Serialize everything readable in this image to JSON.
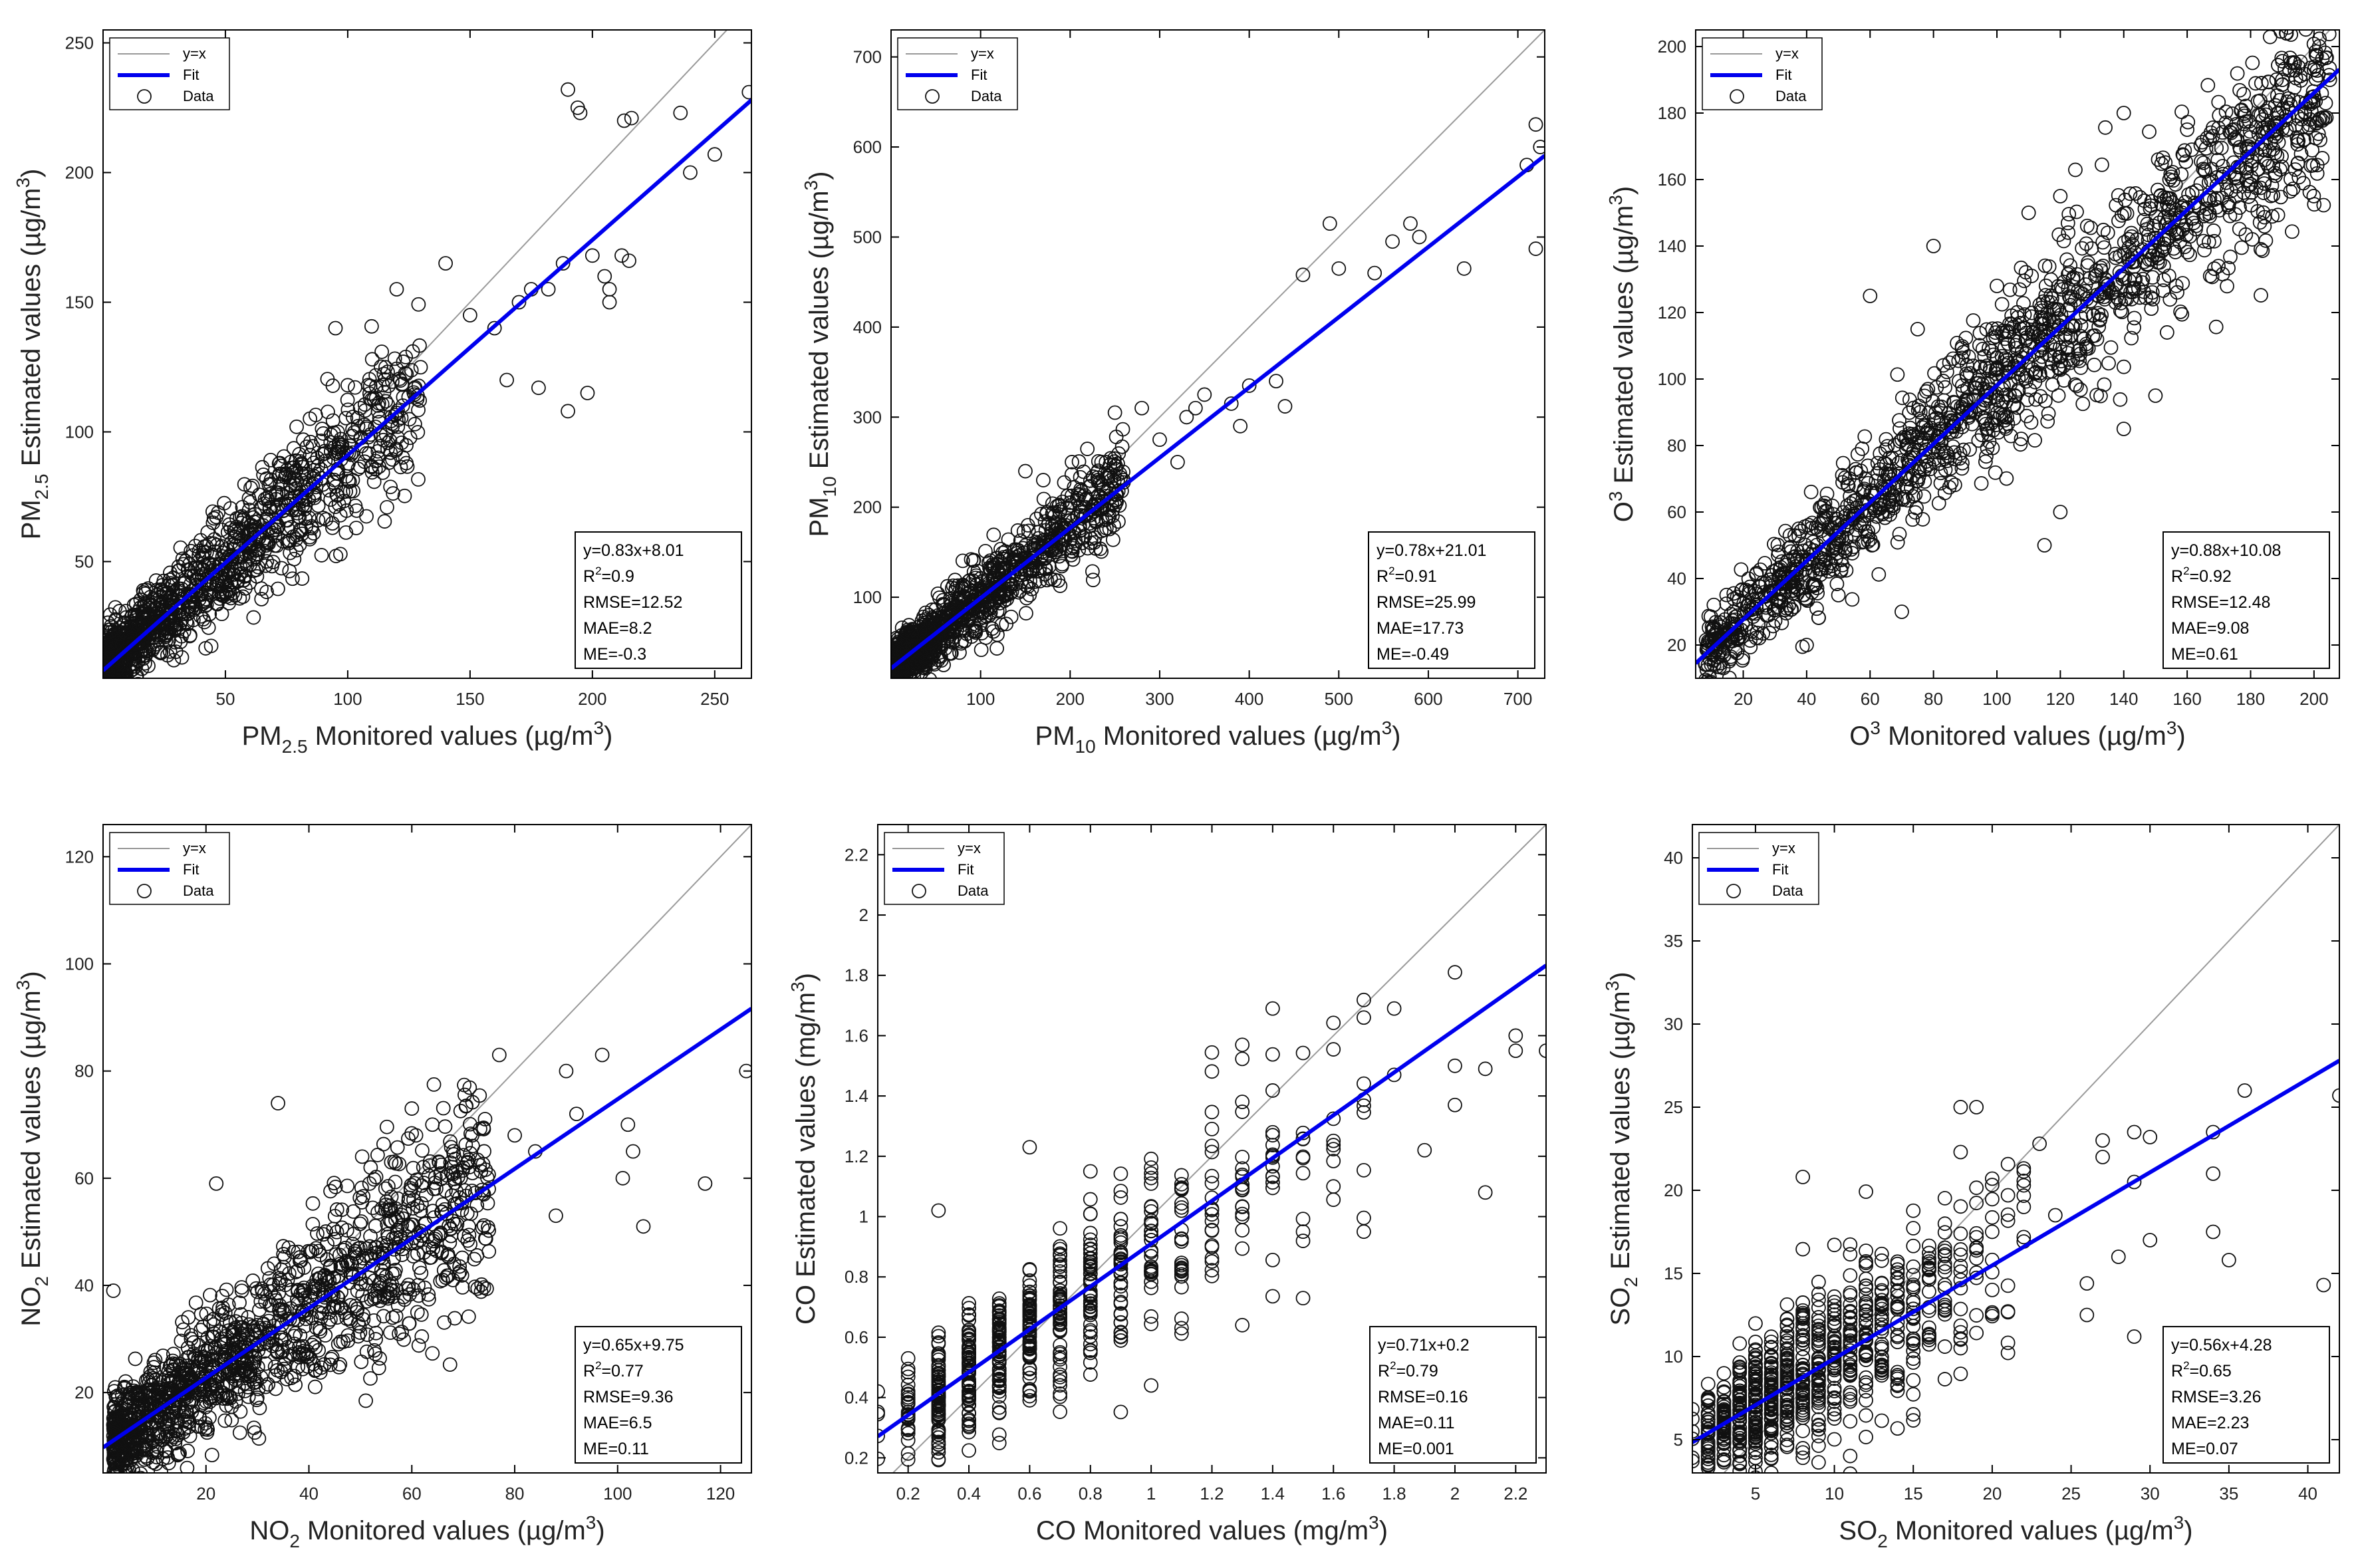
{
  "figure": {
    "layout": "2x3 grid of scatter plots",
    "colors": {
      "fit": "#0000ee",
      "identity": "#9a9a9a",
      "marker": "#111111",
      "axes": "#000000"
    }
  },
  "legend": {
    "identity": "y=x",
    "fit": "Fit",
    "data": "Data"
  },
  "chart_data": [
    {
      "id": "pm25",
      "type": "scatter",
      "unit": "(µg/m3)",
      "x_label_parts": [
        "PM",
        "2.5",
        " Monitored values (µg/m",
        "3",
        ")"
      ],
      "y_label_parts": [
        "PM",
        "2.5",
        " Estimated values (µg/m",
        "3",
        ")"
      ],
      "xlim": [
        0,
        265
      ],
      "ylim": [
        5,
        255
      ],
      "xticks": [
        50,
        100,
        150,
        200,
        250
      ],
      "yticks": [
        50,
        100,
        150,
        200,
        250
      ],
      "fit": {
        "slope": 0.83,
        "intercept": 8.01
      },
      "stats": {
        "equation": "y=0.83x+8.01",
        "r2": "R2=0.9",
        "rmse": "RMSE=12.52",
        "mae": "MAE=8.2",
        "me": "ME=-0.3"
      },
      "cloud": {
        "n": 1300,
        "xmin": 2,
        "xmax": 130,
        "skew": 2.2,
        "noise": 10
      },
      "points": [
        [
          190,
          232
        ],
        [
          194,
          225
        ],
        [
          195,
          223
        ],
        [
          213,
          220
        ],
        [
          216,
          221
        ],
        [
          236,
          223
        ],
        [
          240,
          200
        ],
        [
          250,
          207
        ],
        [
          264,
          231
        ],
        [
          188,
          165
        ],
        [
          200,
          168
        ],
        [
          205,
          160
        ],
        [
          207,
          155
        ],
        [
          207,
          150
        ],
        [
          212,
          168
        ],
        [
          215,
          166
        ],
        [
          190,
          108
        ],
        [
          198,
          115
        ],
        [
          178,
          117
        ],
        [
          182,
          155
        ],
        [
          160,
          140
        ],
        [
          150,
          145
        ],
        [
          170,
          150
        ],
        [
          175,
          155
        ],
        [
          165,
          120
        ],
        [
          140,
          165
        ],
        [
          120,
          155
        ],
        [
          110,
          128
        ],
        [
          100,
          118
        ],
        [
          95,
          140
        ]
      ]
    },
    {
      "id": "pm10",
      "type": "scatter",
      "unit": "(µg/m3)",
      "x_label_parts": [
        "PM",
        "10",
        " Monitored values (µg/m",
        "3",
        ")"
      ],
      "y_label_parts": [
        "PM",
        "10",
        " Estimated values (µg/m",
        "3",
        ")"
      ],
      "xlim": [
        0,
        730
      ],
      "ylim": [
        10,
        730
      ],
      "xticks": [
        100,
        200,
        300,
        400,
        500,
        600,
        700
      ],
      "yticks": [
        100,
        200,
        300,
        400,
        500,
        600,
        700
      ],
      "fit": {
        "slope": 0.78,
        "intercept": 21.01
      },
      "stats": {
        "equation": "y=0.78x+21.01",
        "r2": "R2=0.91",
        "rmse": "RMSE=25.99",
        "mae": "MAE=17.73",
        "me": "ME=-0.49"
      },
      "cloud": {
        "n": 1300,
        "xmin": 5,
        "xmax": 260,
        "skew": 2.2,
        "noise": 20
      },
      "points": [
        [
          720,
          625
        ],
        [
          710,
          580
        ],
        [
          725,
          600
        ],
        [
          720,
          487
        ],
        [
          640,
          465
        ],
        [
          580,
          515
        ],
        [
          590,
          500
        ],
        [
          560,
          495
        ],
        [
          540,
          460
        ],
        [
          490,
          515
        ],
        [
          500,
          465
        ],
        [
          460,
          458
        ],
        [
          430,
          340
        ],
        [
          440,
          312
        ],
        [
          380,
          315
        ],
        [
          390,
          290
        ],
        [
          400,
          335
        ],
        [
          350,
          325
        ],
        [
          340,
          310
        ],
        [
          300,
          275
        ],
        [
          280,
          310
        ],
        [
          250,
          305
        ],
        [
          240,
          250
        ],
        [
          330,
          300
        ],
        [
          320,
          250
        ],
        [
          170,
          230
        ],
        [
          150,
          240
        ],
        [
          200,
          205
        ]
      ]
    },
    {
      "id": "o3",
      "type": "scatter",
      "unit": "(µg/m3)",
      "x_label_parts": [
        "O",
        "3",
        " Monitored values (µg/m",
        "3",
        ")"
      ],
      "y_label_parts": [
        "O",
        "3",
        " Estimated values (µg/m",
        "3",
        ")"
      ],
      "xlim": [
        5,
        208
      ],
      "ylim": [
        10,
        205
      ],
      "xticks": [
        20,
        40,
        60,
        80,
        100,
        120,
        140,
        160,
        180,
        200
      ],
      "yticks": [
        20,
        40,
        60,
        80,
        100,
        120,
        140,
        160,
        180,
        200
      ],
      "fit": {
        "slope": 0.88,
        "intercept": 10.08
      },
      "stats": {
        "equation": "y=0.88x+10.08",
        "r2": "R2=0.92",
        "rmse": "RMSE=12.48",
        "mae": "MAE=9.08",
        "me": "ME=0.61"
      },
      "cloud": {
        "n": 1600,
        "xmin": 8,
        "xmax": 205,
        "skew": 1.0,
        "noise": 10
      },
      "points": [
        [
          205,
          190
        ],
        [
          200,
          185
        ],
        [
          190,
          190
        ],
        [
          185,
          175
        ],
        [
          195,
          165
        ],
        [
          160,
          175
        ],
        [
          140,
          180
        ],
        [
          120,
          155
        ],
        [
          110,
          150
        ],
        [
          100,
          128
        ],
        [
          80,
          140
        ],
        [
          60,
          125
        ],
        [
          75,
          115
        ],
        [
          150,
          95
        ],
        [
          140,
          85
        ],
        [
          120,
          60
        ],
        [
          115,
          50
        ],
        [
          70,
          30
        ],
        [
          50,
          35
        ],
        [
          40,
          20
        ]
      ]
    },
    {
      "id": "no2",
      "type": "scatter",
      "unit": "(µg/m3)",
      "x_label_parts": [
        "NO",
        "2",
        " Monitored values (µg/m",
        "3",
        ")"
      ],
      "y_label_parts": [
        "NO",
        "2",
        " Estimated values (µg/m",
        "3",
        ")"
      ],
      "xlim": [
        0,
        126
      ],
      "ylim": [
        5,
        126
      ],
      "xticks": [
        20,
        40,
        60,
        80,
        100,
        120
      ],
      "yticks": [
        20,
        40,
        60,
        80,
        100,
        120
      ],
      "fit": {
        "slope": 0.65,
        "intercept": 9.75
      },
      "stats": {
        "equation": "y=0.65x+9.75",
        "r2": "R2=0.77",
        "rmse": "RMSE=9.36",
        "mae": "MAE=6.5",
        "me": "ME=0.11"
      },
      "cloud": {
        "n": 1400,
        "xmin": 2,
        "xmax": 75,
        "skew": 1.5,
        "noise": 6.5
      },
      "points": [
        [
          125,
          80
        ],
        [
          117,
          59
        ],
        [
          105,
          51
        ],
        [
          103,
          65
        ],
        [
          101,
          60
        ],
        [
          97,
          83
        ],
        [
          102,
          70
        ],
        [
          92,
          72
        ],
        [
          90,
          80
        ],
        [
          88,
          53
        ],
        [
          84,
          65
        ],
        [
          80,
          68
        ],
        [
          77,
          83
        ],
        [
          74,
          57
        ],
        [
          70,
          62
        ],
        [
          68,
          41
        ],
        [
          66,
          41
        ],
        [
          64,
          70
        ],
        [
          60,
          73
        ],
        [
          56,
          63
        ],
        [
          52,
          62
        ],
        [
          50,
          47
        ],
        [
          34,
          74
        ],
        [
          22,
          59
        ],
        [
          2,
          39
        ]
      ]
    },
    {
      "id": "co",
      "type": "scatter",
      "unit": "(mg/m3)",
      "x_label_parts": [
        "CO Monitored values (mg/m",
        "3",
        ")"
      ],
      "y_label_parts": [
        "CO Estimated values (mg/m",
        "3",
        ")"
      ],
      "xlim": [
        0.1,
        2.3
      ],
      "ylim": [
        0.15,
        2.3
      ],
      "xticks": [
        0.2,
        0.4,
        0.6,
        0.8,
        1,
        1.2,
        1.4,
        1.6,
        1.8,
        2,
        2.2
      ],
      "yticks": [
        0.2,
        0.4,
        0.6,
        0.8,
        1,
        1.2,
        1.4,
        1.6,
        1.8,
        2,
        2.2
      ],
      "fit": {
        "slope": 0.71,
        "intercept": 0.2
      },
      "stats": {
        "equation": "y=0.71x+0.2",
        "r2": "R2=0.79",
        "rmse": "RMSE=0.16",
        "mae": "MAE=0.11",
        "me": "ME=0.001"
      },
      "columns": {
        "x": [
          0.1,
          0.2,
          0.3,
          0.4,
          0.5,
          0.6,
          0.7,
          0.8,
          0.9,
          1.0,
          1.1,
          1.2,
          1.3,
          1.4,
          1.5,
          1.6,
          1.7
        ],
        "count": [
          4,
          30,
          80,
          80,
          70,
          70,
          55,
          50,
          40,
          35,
          25,
          22,
          18,
          15,
          10,
          8,
          7
        ],
        "spread": [
          0.06,
          0.1,
          0.1,
          0.12,
          0.13,
          0.13,
          0.15,
          0.15,
          0.16,
          0.18,
          0.19,
          0.2,
          0.2,
          0.22,
          0.22,
          0.22,
          0.22
        ]
      },
      "points": [
        [
          0.1,
          0.42
        ],
        [
          0.3,
          1.02
        ],
        [
          0.6,
          1.23
        ],
        [
          1.0,
          0.44
        ],
        [
          1.1,
          0.63
        ],
        [
          1.3,
          0.64
        ],
        [
          1.4,
          1.69
        ],
        [
          1.7,
          1.66
        ],
        [
          1.8,
          1.69
        ],
        [
          1.8,
          1.47
        ],
        [
          1.9,
          1.22
        ],
        [
          2.0,
          1.81
        ],
        [
          2.0,
          1.5
        ],
        [
          2.0,
          1.37
        ],
        [
          2.1,
          1.49
        ],
        [
          2.1,
          1.08
        ],
        [
          2.2,
          1.6
        ],
        [
          2.2,
          1.55
        ],
        [
          2.3,
          1.55
        ],
        [
          1.7,
          0.95
        ],
        [
          1.6,
          1.1
        ],
        [
          1.5,
          0.95
        ]
      ]
    },
    {
      "id": "so2",
      "type": "scatter",
      "unit": "(µg/m3)",
      "x_label_parts": [
        "SO",
        "2",
        " Monitored values (µg/m",
        "3",
        ")"
      ],
      "y_label_parts": [
        "SO",
        "2",
        " Estimated values (µg/m",
        "3",
        ")"
      ],
      "xlim": [
        1,
        42
      ],
      "ylim": [
        3,
        42
      ],
      "xticks": [
        5,
        10,
        15,
        20,
        25,
        30,
        35,
        40
      ],
      "yticks": [
        5,
        10,
        15,
        20,
        25,
        30,
        35,
        40
      ],
      "fit": {
        "slope": 0.56,
        "intercept": 4.28
      },
      "stats": {
        "equation": "y=0.56x+4.28",
        "r2": "R2=0.65",
        "rmse": "RMSE=3.26",
        "mae": "MAE=2.23",
        "me": "ME=0.07"
      },
      "columns": {
        "x": [
          1,
          2,
          3,
          4,
          5,
          6,
          7,
          8,
          9,
          10,
          11,
          12,
          13,
          14,
          15,
          16,
          17,
          18,
          19,
          20,
          21,
          22
        ],
        "count": [
          6,
          40,
          60,
          70,
          75,
          70,
          65,
          60,
          55,
          50,
          45,
          40,
          35,
          30,
          28,
          24,
          20,
          16,
          12,
          10,
          8,
          7
        ],
        "spread": [
          1.2,
          1.5,
          1.6,
          1.8,
          2.0,
          2.1,
          2.2,
          2.4,
          2.5,
          2.7,
          2.8,
          3.0,
          3.0,
          3.1,
          3.2,
          3.2,
          3.3,
          3.3,
          3.4,
          3.4,
          3.5,
          3.5
        ]
      },
      "points": [
        [
          42,
          25.7
        ],
        [
          41,
          14.3
        ],
        [
          36,
          26
        ],
        [
          35,
          15.8
        ],
        [
          34,
          23.5
        ],
        [
          34,
          21
        ],
        [
          34,
          17.5
        ],
        [
          33,
          10.8
        ],
        [
          30,
          23.2
        ],
        [
          30,
          17
        ],
        [
          29,
          23.5
        ],
        [
          29,
          20.5
        ],
        [
          29,
          11.2
        ],
        [
          28,
          16
        ],
        [
          27,
          23
        ],
        [
          27,
          22
        ],
        [
          26,
          14.4
        ],
        [
          26,
          12.5
        ],
        [
          24,
          18.5
        ],
        [
          23,
          22.8
        ],
        [
          22,
          19
        ],
        [
          21,
          19.7
        ],
        [
          20,
          20.7
        ],
        [
          19,
          25
        ],
        [
          18,
          22.3
        ],
        [
          8,
          20.8
        ]
      ]
    }
  ]
}
